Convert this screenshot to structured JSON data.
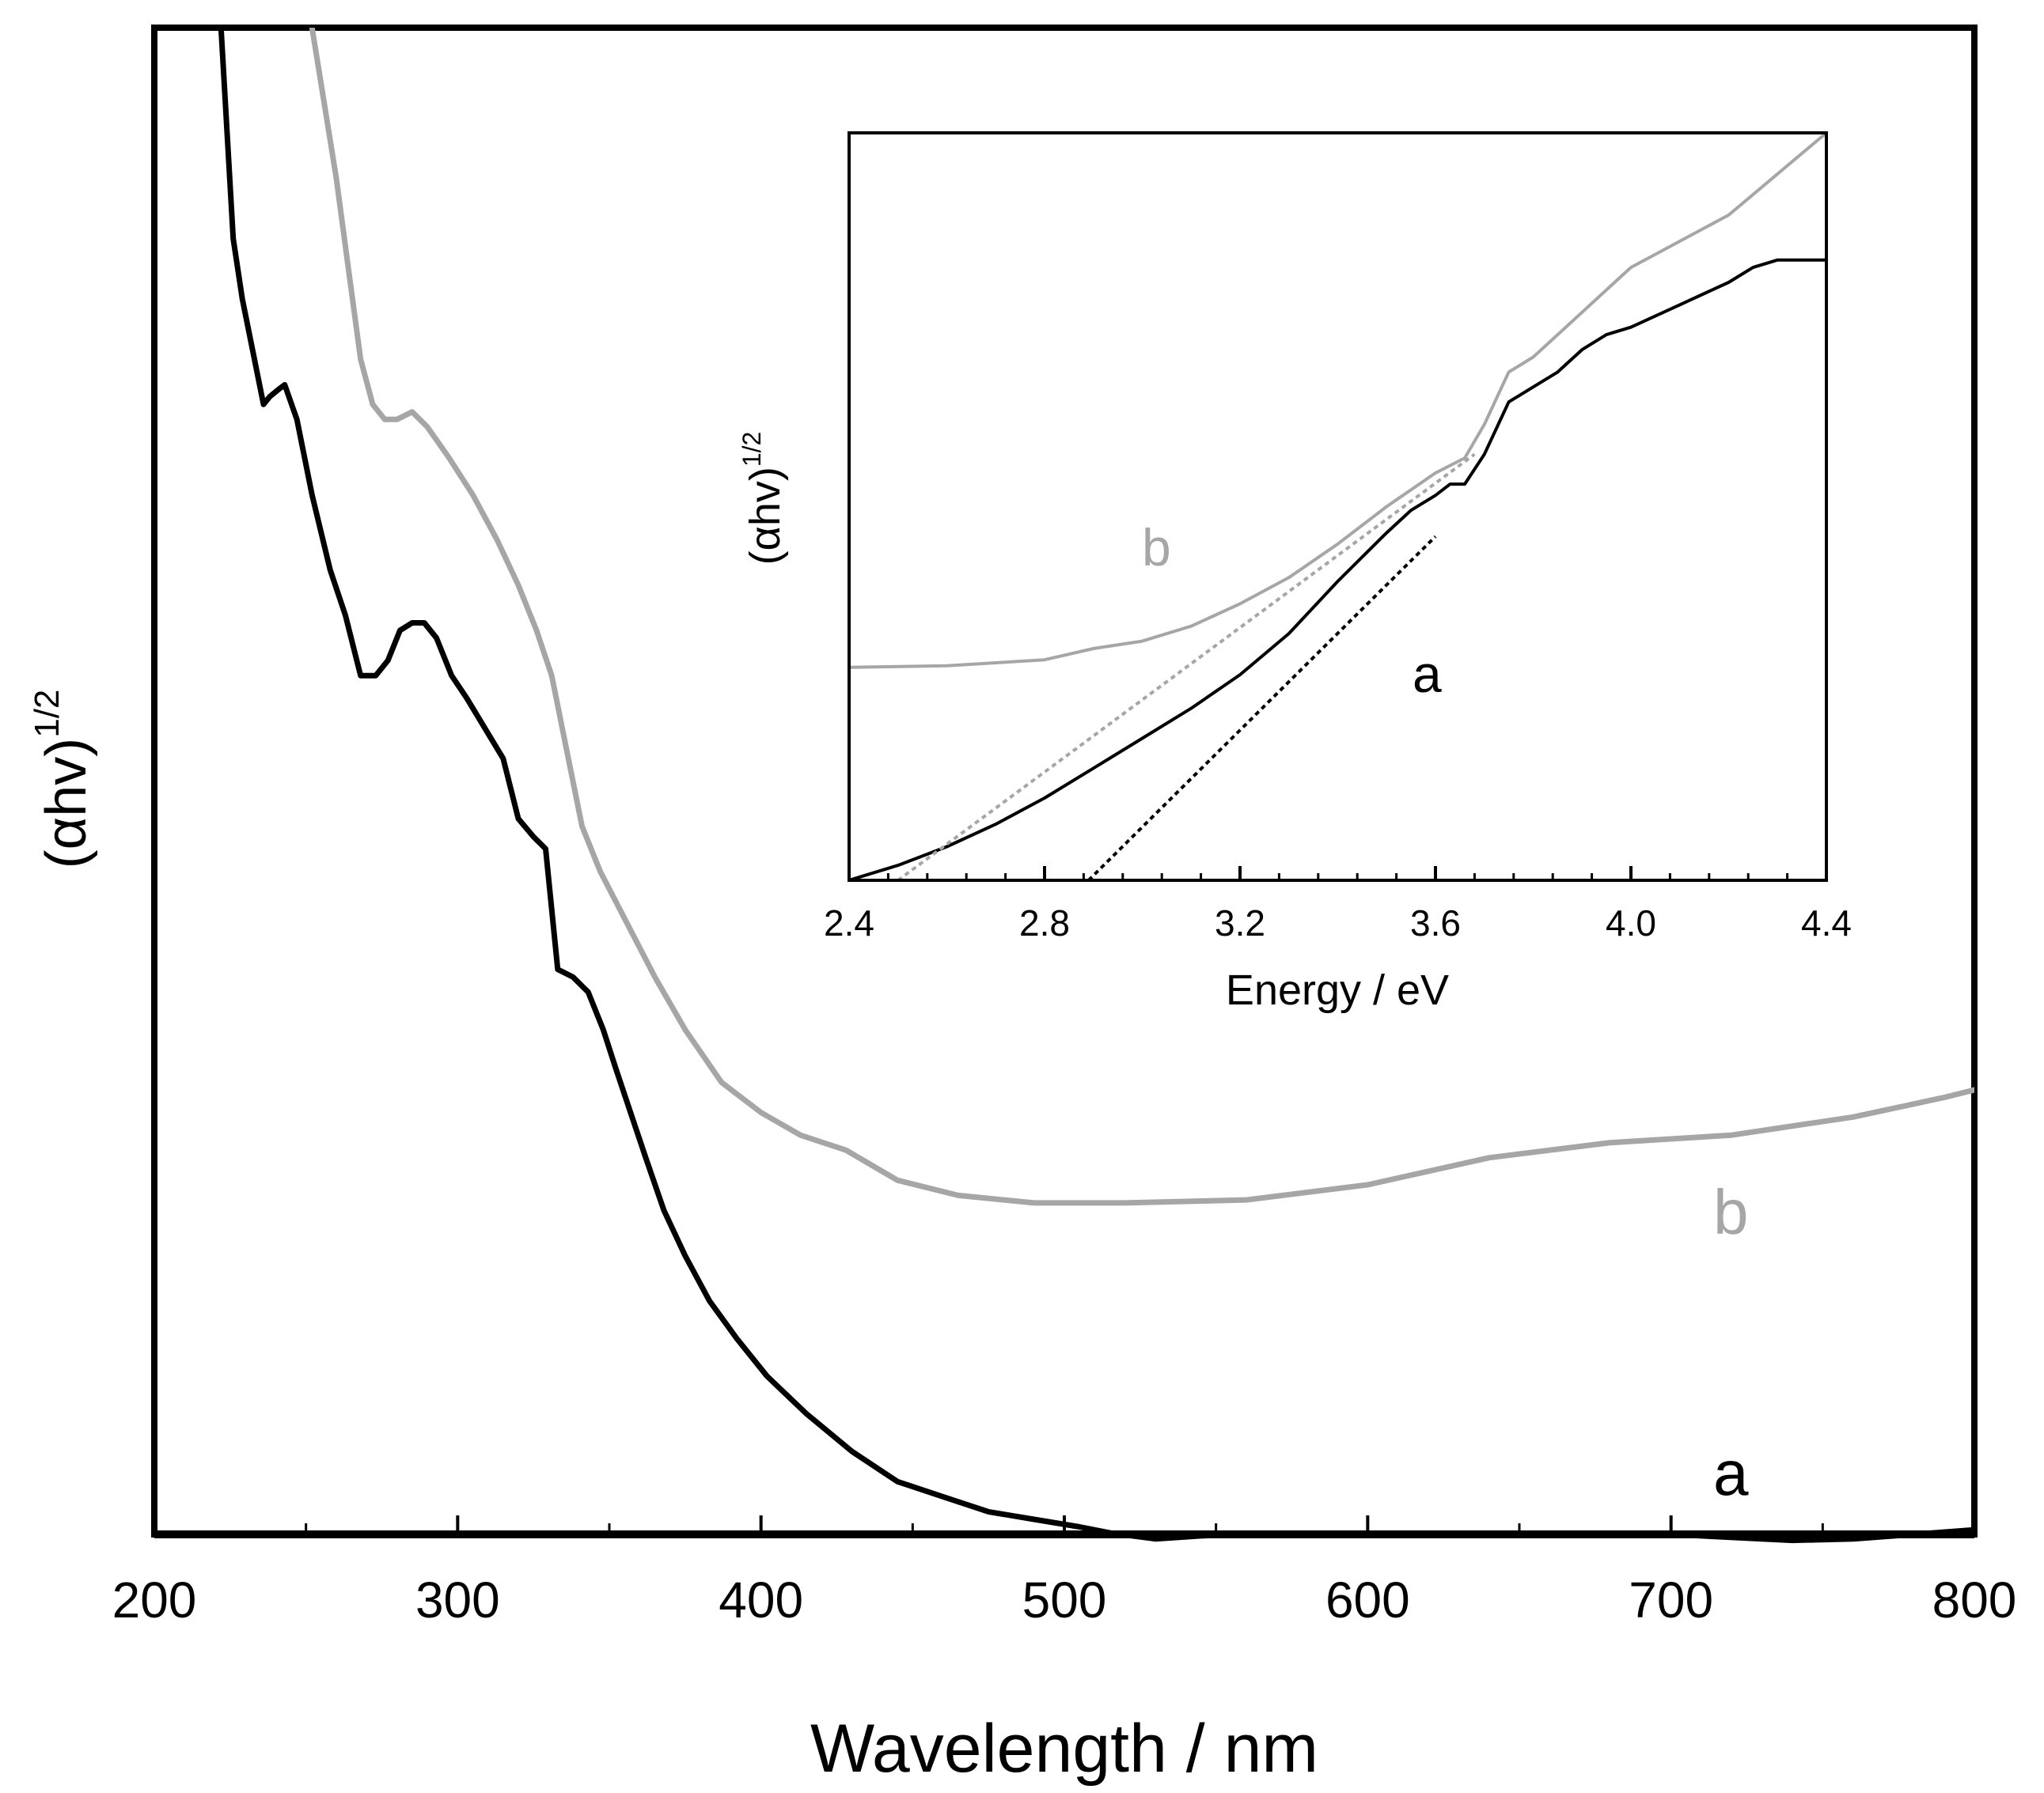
{
  "chart_data": [
    {
      "type": "line",
      "role": "main",
      "xlabel": "Wavelength / nm",
      "ylabel_base": "(αhv)",
      "ylabel_sup": "1/2",
      "xlim": [
        200,
        800
      ],
      "ylim": [
        0,
        100
      ],
      "x_ticks_major": [
        200,
        300,
        400,
        500,
        600,
        700,
        800
      ],
      "x_tick_labels": [
        "200",
        "300",
        "400",
        "500",
        "600",
        "700",
        "800"
      ],
      "x_ticks_minor": [
        250,
        350,
        450,
        550,
        650,
        750
      ],
      "colors": {
        "a": "#000000",
        "b": "#a6a6a6"
      },
      "series": [
        {
          "name": "a",
          "label": "a",
          "color": "#000000",
          "x": [
            222,
            226,
            229,
            233,
            236,
            238,
            241,
            243,
            247,
            252,
            258,
            263,
            268,
            273,
            277,
            281,
            285,
            289,
            293,
            298,
            303,
            309,
            315,
            320,
            325,
            329,
            333,
            338,
            343,
            348,
            352,
            357,
            362,
            368,
            375,
            383,
            392,
            402,
            415,
            430,
            445,
            460,
            475,
            490,
            505,
            515,
            530,
            545,
            560,
            600,
            650,
            700,
            740,
            760,
            780,
            800
          ],
          "y": [
            100,
            86,
            82,
            78,
            75,
            75.5,
            76,
            76.3,
            74,
            69,
            64,
            61,
            57,
            57,
            58,
            60,
            60.5,
            60.5,
            59.5,
            57,
            55.5,
            53.5,
            51.5,
            47.5,
            46.3,
            45.5,
            37.5,
            37,
            36,
            33.5,
            31,
            28,
            25,
            21.5,
            18.5,
            15.5,
            13,
            10.5,
            8,
            5.5,
            3.5,
            2.5,
            1.5,
            1,
            0.5,
            0.1,
            -0.3,
            -0.1,
            0,
            0,
            0,
            0,
            -0.4,
            -0.3,
            0,
            0.3
          ]
        },
        {
          "name": "b",
          "label": "b",
          "color": "#a6a6a6",
          "x": [
            252,
            256,
            260,
            264,
            268,
            272,
            276,
            280,
            285,
            290,
            297,
            305,
            313,
            320,
            326,
            331,
            336,
            341,
            347,
            356,
            365,
            375,
            387,
            400,
            413,
            428,
            445,
            465,
            490,
            520,
            560,
            600,
            640,
            680,
            720,
            760,
            790,
            800
          ],
          "y": [
            100,
            95,
            90,
            84,
            78,
            75,
            74,
            74,
            74.5,
            73.5,
            71.5,
            69,
            66,
            63,
            60,
            57,
            52,
            47,
            44,
            40.5,
            37,
            33.5,
            30,
            28,
            26.5,
            25.5,
            23.5,
            22.5,
            22,
            22,
            22.2,
            23.2,
            25,
            26,
            26.5,
            27.7,
            29,
            29.5
          ]
        }
      ]
    },
    {
      "type": "line",
      "role": "inset",
      "xlabel": "Energy / eV",
      "ylabel_base": "(αhv)",
      "ylabel_sup": "1/2",
      "xlim": [
        2.4,
        4.4
      ],
      "ylim": [
        0,
        100
      ],
      "x_ticks_major": [
        2.4,
        2.8,
        3.2,
        3.6,
        4.0,
        4.4
      ],
      "x_tick_labels": [
        "2.4",
        "2.8",
        "3.2",
        "3.6",
        "4.0",
        "4.4"
      ],
      "series": [
        {
          "name": "a",
          "label": "a",
          "color": "#000000",
          "x": [
            2.4,
            2.5,
            2.6,
            2.7,
            2.8,
            2.9,
            3.0,
            3.1,
            3.2,
            3.3,
            3.4,
            3.5,
            3.55,
            3.6,
            3.63,
            3.66,
            3.7,
            3.75,
            3.8,
            3.85,
            3.9,
            3.95,
            4.0,
            4.1,
            4.2,
            4.25,
            4.3,
            4.4
          ],
          "y": [
            0,
            2,
            4.5,
            7.5,
            11,
            15,
            19,
            23,
            27.5,
            33,
            40,
            46.5,
            49.5,
            51.5,
            53,
            53,
            57,
            64,
            66,
            68,
            71,
            73,
            74,
            77,
            80,
            82,
            83,
            83
          ]
        },
        {
          "name": "b",
          "label": "b",
          "color": "#a6a6a6",
          "x": [
            2.4,
            2.6,
            2.8,
            2.9,
            3.0,
            3.1,
            3.2,
            3.3,
            3.4,
            3.5,
            3.6,
            3.66,
            3.7,
            3.75,
            3.8,
            3.9,
            4.0,
            4.2,
            4.4
          ],
          "y": [
            28.5,
            28.7,
            29.5,
            31,
            32,
            34,
            37,
            40.5,
            45,
            50,
            54.5,
            56.5,
            61,
            68,
            70,
            76,
            82,
            89,
            100
          ]
        },
        {
          "name": "a-tangent",
          "label": "",
          "color": "#000000",
          "dashed": true,
          "x": [
            2.89,
            3.6
          ],
          "y": [
            0,
            46
          ]
        },
        {
          "name": "b-tangent",
          "label": "",
          "color": "#a6a6a6",
          "dashed": true,
          "x": [
            2.5,
            3.68
          ],
          "y": [
            0,
            57
          ]
        }
      ]
    }
  ]
}
